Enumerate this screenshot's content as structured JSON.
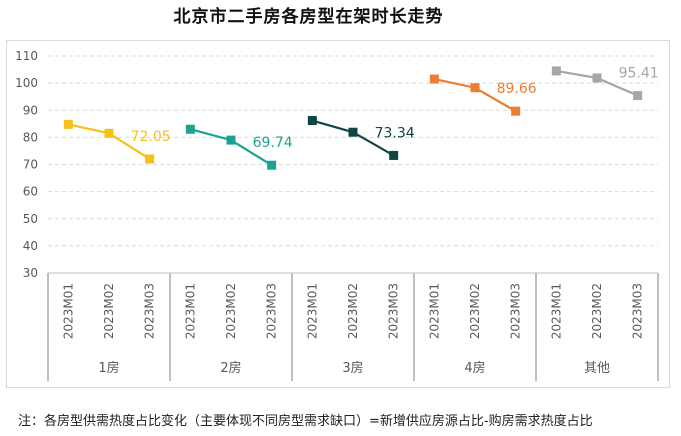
{
  "title": "北京市二手房各房型在架时长走势",
  "footnote": "注：各房型供需热度占比变化（主要体现不同房型需求缺口）=新增供应房源占比-购房需求热度占比",
  "chart_data": {
    "type": "line",
    "title": "北京市二手房各房型在架时长走势",
    "ylim": [
      30,
      110
    ],
    "yticks": [
      30,
      40,
      50,
      60,
      70,
      80,
      90,
      100,
      110
    ],
    "grid": true,
    "x_periods": [
      "2023M01",
      "2023M02",
      "2023M03"
    ],
    "groups": [
      "1房",
      "2房",
      "3房",
      "4房",
      "其他"
    ],
    "series": [
      {
        "group": "1房",
        "color": "#f5c21b",
        "values": [
          84.8,
          81.5,
          72.05
        ],
        "end_label": "72.05"
      },
      {
        "group": "2房",
        "color": "#1aa391",
        "values": [
          83.0,
          79.0,
          69.74
        ],
        "end_label": "69.74"
      },
      {
        "group": "3房",
        "color": "#0f4542",
        "values": [
          86.2,
          81.9,
          73.34
        ],
        "end_label": "73.34"
      },
      {
        "group": "4房",
        "color": "#ed7d31",
        "values": [
          101.5,
          98.3,
          89.66
        ],
        "end_label": "89.66"
      },
      {
        "group": "其他",
        "color": "#a6a6a6",
        "values": [
          104.5,
          101.9,
          95.41
        ],
        "end_label": "95.41"
      }
    ]
  }
}
